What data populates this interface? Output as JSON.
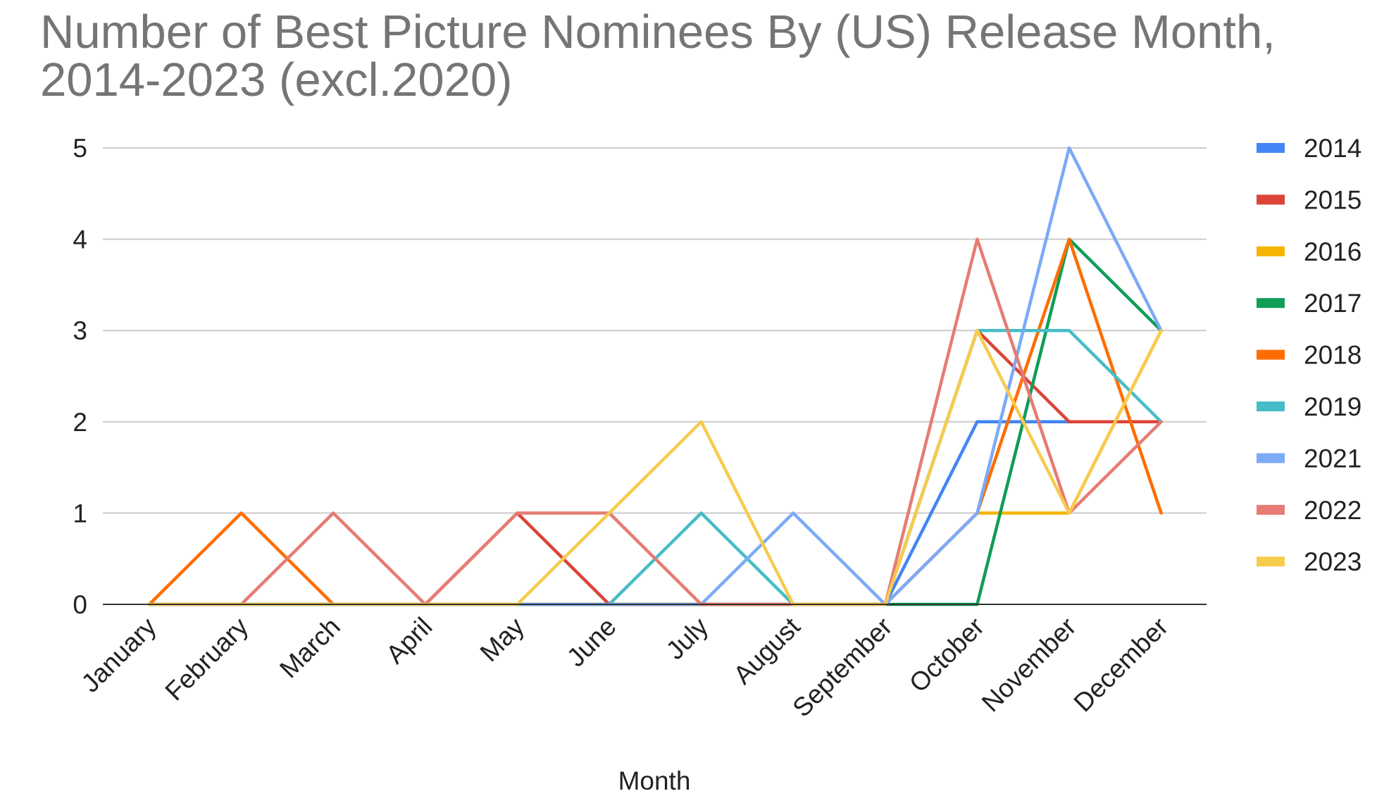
{
  "chart_data": {
    "type": "line",
    "title_line1": "Number of Best Picture Nominees By (US) Release Month,",
    "title_line2": "2014-2023 (excl.2020)",
    "xlabel": "Month",
    "ylabel": "",
    "ylim": [
      0,
      5
    ],
    "yticks": [
      "0",
      "1",
      "2",
      "3",
      "4",
      "5"
    ],
    "grid": true,
    "legend_position": "right",
    "categories": [
      "January",
      "February",
      "March",
      "April",
      "May",
      "June",
      "July",
      "August",
      "September",
      "October",
      "November",
      "December"
    ],
    "series": [
      {
        "name": "2014",
        "color": "#4285f4",
        "values": [
          0,
          0,
          0,
          0,
          0,
          0,
          0,
          0,
          0,
          2,
          2,
          2
        ]
      },
      {
        "name": "2015",
        "color": "#db4437",
        "values": [
          0,
          0,
          0,
          0,
          1,
          0,
          0,
          0,
          0,
          3,
          2,
          2
        ]
      },
      {
        "name": "2016",
        "color": "#f4b400",
        "values": [
          0,
          0,
          0,
          0,
          0,
          0,
          0,
          0,
          0,
          1,
          1,
          3
        ]
      },
      {
        "name": "2017",
        "color": "#0f9d58",
        "values": [
          0,
          0,
          0,
          0,
          0,
          0,
          0,
          0,
          0,
          0,
          4,
          3
        ]
      },
      {
        "name": "2018",
        "color": "#ff6d01",
        "values": [
          0,
          1,
          0,
          0,
          0,
          0,
          0,
          0,
          0,
          1,
          4,
          1
        ]
      },
      {
        "name": "2019",
        "color": "#46bdc6",
        "values": [
          0,
          0,
          0,
          0,
          0,
          0,
          1,
          0,
          0,
          3,
          3,
          2
        ]
      },
      {
        "name": "2021",
        "color": "#7baaf7",
        "values": [
          0,
          0,
          0,
          0,
          0,
          0,
          0,
          1,
          0,
          1,
          5,
          3
        ]
      },
      {
        "name": "2022",
        "color": "#e67c73",
        "values": [
          0,
          0,
          1,
          0,
          1,
          1,
          0,
          0,
          0,
          4,
          1,
          2
        ]
      },
      {
        "name": "2023",
        "color": "#f7cb4d",
        "values": [
          0,
          0,
          0,
          0,
          0,
          1,
          2,
          0,
          0,
          3,
          1,
          3
        ]
      }
    ]
  }
}
